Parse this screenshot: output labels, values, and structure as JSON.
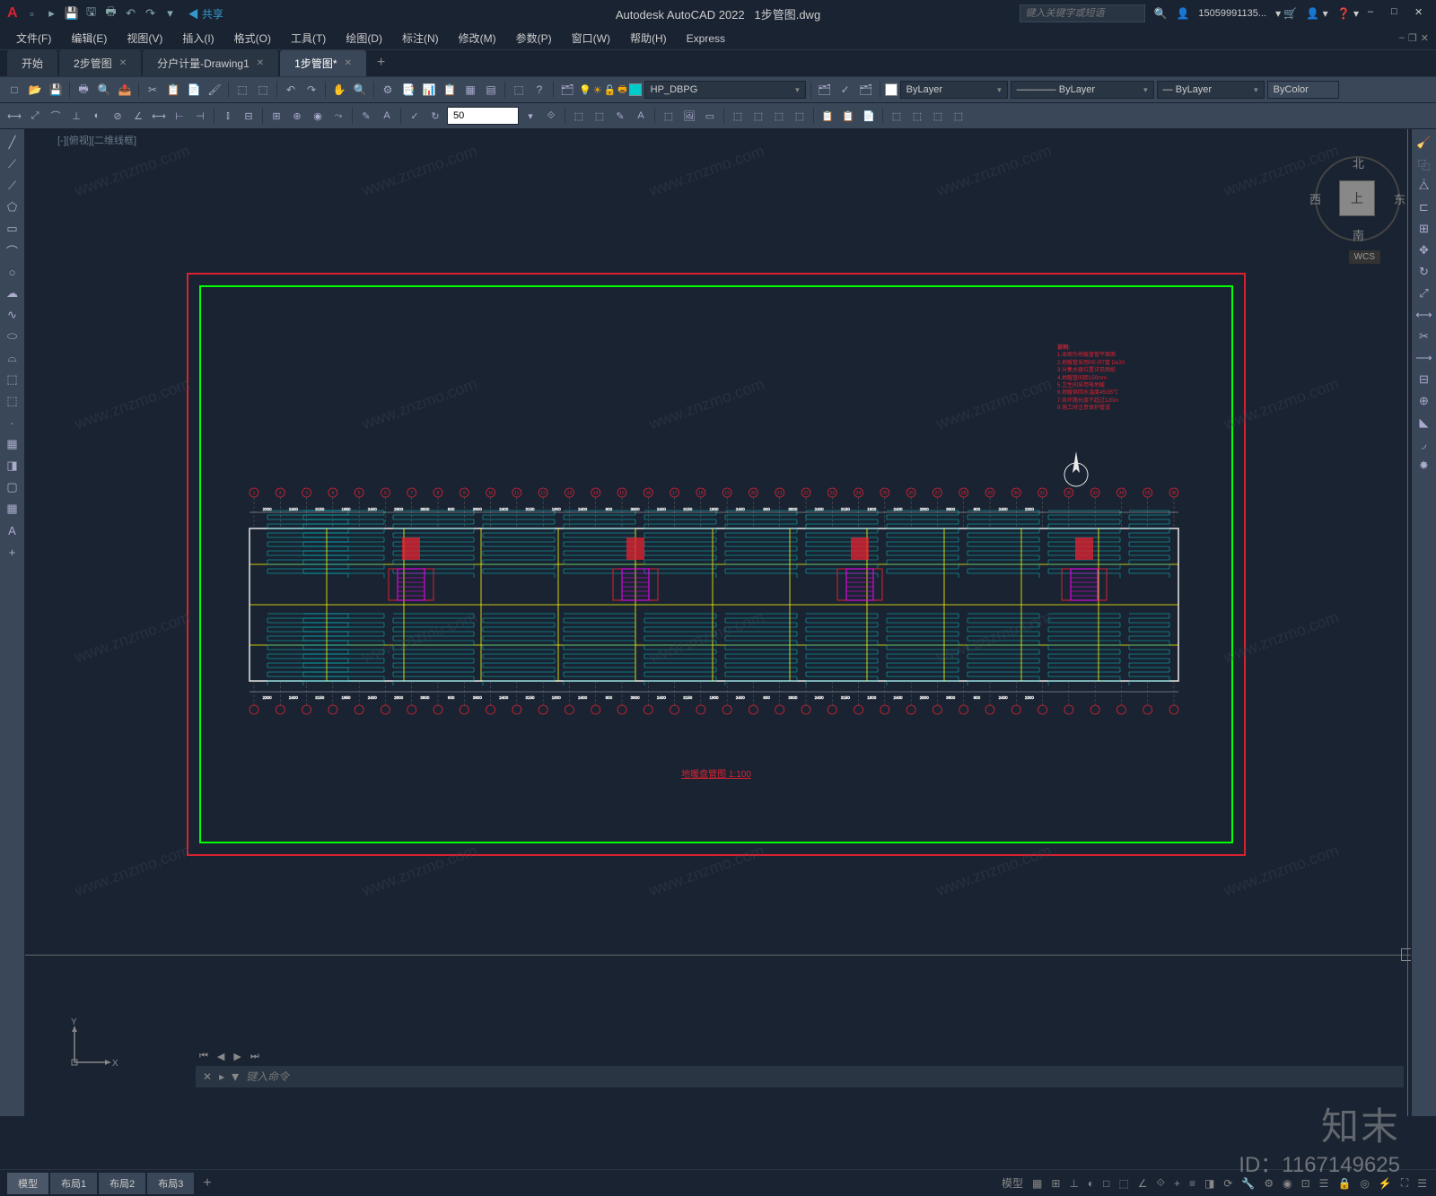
{
  "app": {
    "title": "Autodesk AutoCAD 2022",
    "filename": "1步管图.dwg",
    "logo": "A",
    "share": "共享",
    "search_placeholder": "键入关键字或短语",
    "user": "15059991135..."
  },
  "menus": [
    "文件(F)",
    "编辑(E)",
    "视图(V)",
    "插入(I)",
    "格式(O)",
    "工具(T)",
    "绘图(D)",
    "标注(N)",
    "修改(M)",
    "参数(P)",
    "窗口(W)",
    "帮助(H)",
    "Express"
  ],
  "tabs": [
    {
      "label": "开始",
      "active": false,
      "closable": false
    },
    {
      "label": "2步管图",
      "active": false,
      "closable": true
    },
    {
      "label": "分户计量-Drawing1",
      "active": false,
      "closable": true
    },
    {
      "label": "1步管图*",
      "active": true,
      "closable": true
    }
  ],
  "layer": {
    "current": "HP_DBPG",
    "color_prop": "ByLayer",
    "linetype_prop": "ByLayer",
    "lineweight_prop": "ByLayer",
    "plot_style": "ByColor"
  },
  "dim_scale": "50",
  "viewport_label": "[-][俯视][二维线框]",
  "viewcube": {
    "top": "上",
    "n": "北",
    "s": "南",
    "e": "东",
    "w": "西",
    "wcs": "WCS"
  },
  "drawing": {
    "title_text": "地暖盘管图 1:100",
    "colors": {
      "red": "#d92231",
      "green": "#00ff00",
      "cyan": "#00cccc",
      "yellow": "#ffff00",
      "white": "#e8e8e8",
      "magenta": "#ff00ff",
      "bg": "#1a2332"
    },
    "notes": [
      "说明:",
      "1.本图为地暖盘管平面图",
      "2.地暖管采用PE-RT管 De20",
      "3.分集水器位置详见图纸",
      "4.地暖管间距150mm",
      "5.卫生间采用电地暖",
      "6.地暖供回水温度45/35℃",
      "7.各环路长度不超过120m",
      "8.施工时注意保护管道"
    ],
    "grid_labels_top": [
      "1",
      "2",
      "3",
      "4",
      "5",
      "6",
      "7",
      "8",
      "9",
      "10",
      "11",
      "12",
      "13",
      "14",
      "15",
      "16",
      "17",
      "18",
      "19",
      "20",
      "21",
      "22",
      "23",
      "24",
      "25",
      "26",
      "27",
      "28",
      "29",
      "30",
      "31",
      "32",
      "33",
      "34",
      "35",
      "36"
    ],
    "dims_top": [
      "2300",
      "2400",
      "3150",
      "1650",
      "2400",
      "2800",
      "3600",
      "900",
      "3600",
      "2400",
      "3150",
      "1800",
      "2400",
      "900",
      "3600",
      "2400",
      "3150",
      "1800",
      "2400",
      "900",
      "3600",
      "2400",
      "3150",
      "1800",
      "2400",
      "2800",
      "3600",
      "900",
      "2400",
      "2300"
    ]
  },
  "cmdline": {
    "prompt": "▸",
    "placeholder": "键入命令"
  },
  "layout_tabs": [
    "模型",
    "布局1",
    "布局2",
    "布局3"
  ],
  "watermark": {
    "logo": "知末",
    "id": "ID：1167149625",
    "url": "www.znzmo.com"
  }
}
